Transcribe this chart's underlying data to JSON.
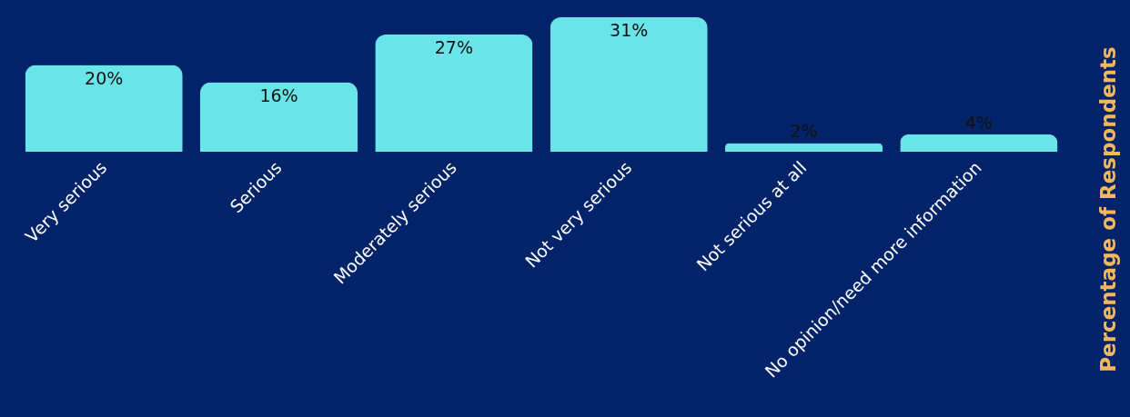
{
  "chart_data": {
    "type": "bar",
    "ylabel": "Percentage of Respondents",
    "categories": [
      "Very serious",
      "Serious",
      "Moderately serious",
      "Not very serious",
      "Not serious at all",
      "No opinion/need more information"
    ],
    "values": [
      20,
      16,
      27,
      31,
      2,
      4
    ],
    "value_labels": [
      "20%",
      "16%",
      "27%",
      "31%",
      "2%",
      "4%"
    ],
    "color": "#69e4e8",
    "grid": false
  }
}
